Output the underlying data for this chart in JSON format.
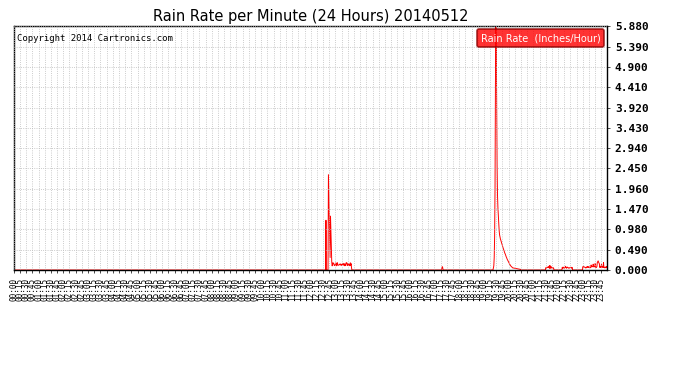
{
  "title": "Rain Rate per Minute (24 Hours) 20140512",
  "copyright": "Copyright 2014 Cartronics.com",
  "legend_label": "Rain Rate  (Inches/Hour)",
  "line_color": "#ff0000",
  "background_color": "#ffffff",
  "grid_color": "#bbbbbb",
  "yticks": [
    0.0,
    0.49,
    0.98,
    1.47,
    1.96,
    2.45,
    2.94,
    3.43,
    3.92,
    4.41,
    4.9,
    5.39,
    5.88
  ],
  "ymax": 5.88,
  "ymin": 0.0,
  "total_minutes": 1440,
  "x_tick_interval": 15
}
